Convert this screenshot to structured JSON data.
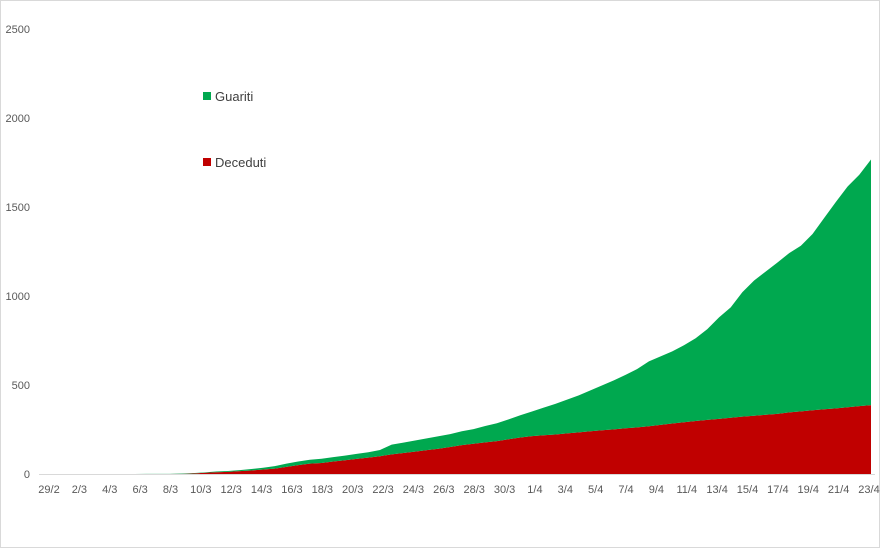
{
  "chart_data": {
    "type": "area",
    "stacked": true,
    "grid": false,
    "legend_position": "inside-top-left",
    "ylim": [
      0,
      2500
    ],
    "yticks": [
      "0",
      "500",
      "1000",
      "1500",
      "2000",
      "2500"
    ],
    "xtick_labels": [
      "29/2",
      "2/3",
      "4/3",
      "6/3",
      "8/3",
      "10/3",
      "12/3",
      "14/3",
      "16/3",
      "18/3",
      "20/3",
      "22/3",
      "24/3",
      "26/3",
      "28/3",
      "30/3",
      "1/4",
      "3/4",
      "5/4",
      "7/4",
      "9/4",
      "11/4",
      "13/4",
      "15/4",
      "17/4",
      "19/4",
      "21/4",
      "23/4"
    ],
    "series": [
      {
        "name": "Deceduti",
        "color": "#c00000",
        "values": [
          0,
          0,
          0,
          0,
          0,
          0,
          0,
          0,
          0,
          0,
          0,
          0,
          1,
          3,
          7,
          10,
          12,
          16,
          20,
          25,
          30,
          40,
          50,
          58,
          62,
          70,
          77,
          85,
          92,
          100,
          110,
          118,
          126,
          134,
          142,
          152,
          162,
          170,
          178,
          185,
          195,
          205,
          213,
          218,
          222,
          228,
          234,
          240,
          246,
          251,
          257,
          262,
          268,
          276,
          284,
          291,
          298,
          304,
          310,
          316,
          322,
          327,
          333,
          338,
          346,
          352,
          358,
          364,
          369,
          375,
          381,
          387
        ]
      },
      {
        "name": "Guariti",
        "color": "#00a84f",
        "values": [
          0,
          0,
          0,
          0,
          0,
          0,
          0,
          0,
          0,
          1,
          1,
          1,
          2,
          2,
          2,
          4,
          5,
          6,
          8,
          10,
          14,
          18,
          20,
          22,
          24,
          25,
          26,
          28,
          30,
          35,
          55,
          58,
          62,
          66,
          70,
          72,
          78,
          82,
          92,
          100,
          112,
          125,
          138,
          155,
          172,
          190,
          208,
          230,
          252,
          275,
          300,
          328,
          365,
          385,
          405,
          432,
          465,
          510,
          570,
          620,
          700,
          760,
          805,
          850,
          895,
          930,
          990,
          1075,
          1160,
          1240,
          1300,
          1380
        ]
      }
    ]
  }
}
